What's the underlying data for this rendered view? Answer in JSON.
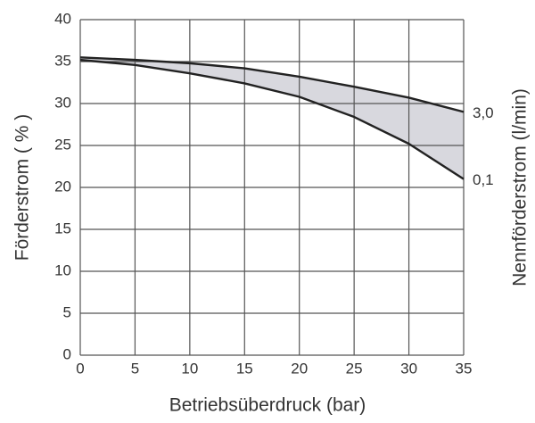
{
  "chart_data": {
    "type": "line",
    "xlabel": "Betriebsüberdruck   (bar)",
    "ylabel": "Förderstrom   ( % )",
    "y2label": "Nennförderstrom  (l/min)",
    "x": [
      0,
      5,
      10,
      15,
      20,
      25,
      30,
      35
    ],
    "series": [
      {
        "name": "3,0",
        "color": "#222222",
        "values": [
          35.5,
          35.2,
          34.8,
          34.2,
          33.2,
          32,
          30.7,
          29
        ]
      },
      {
        "name": "0,1",
        "color": "#222222",
        "values": [
          35.2,
          34.6,
          33.6,
          32.4,
          30.8,
          28.4,
          25.2,
          21
        ]
      }
    ],
    "fill_between": true,
    "fill_color": "#d8d8de",
    "xlim": [
      0,
      35
    ],
    "xticks": [
      0,
      5,
      10,
      15,
      20,
      25,
      30,
      35
    ],
    "ylim": [
      0,
      40
    ],
    "yticks": [
      0,
      5,
      10,
      15,
      20,
      25,
      30,
      35,
      40
    ],
    "grid": true
  }
}
